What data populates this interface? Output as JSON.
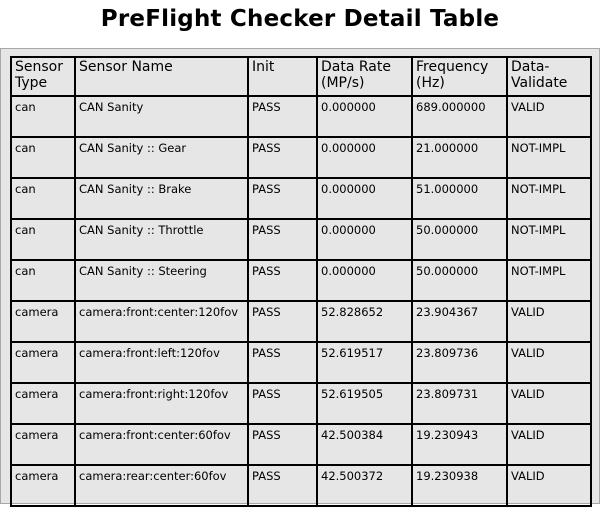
{
  "page": {
    "title": "PreFlight Checker Detail Table"
  },
  "colors": {
    "pass": "#33c933",
    "valid": "#33c933",
    "not_impl": "#f07a2a"
  },
  "table": {
    "headers": [
      "Sensor Type",
      "Sensor Name",
      "Init",
      "Data Rate (MP/s)",
      "Frequency (Hz)",
      "Data-Validate"
    ],
    "rows": [
      {
        "type": "can",
        "name": "CAN Sanity",
        "init": "PASS",
        "data_rate": "0.000000",
        "frequency": "689.000000",
        "validate": "VALID"
      },
      {
        "type": "can",
        "name": "CAN Sanity :: Gear",
        "init": "PASS",
        "data_rate": "0.000000",
        "frequency": "21.000000",
        "validate": "NOT-IMPL"
      },
      {
        "type": "can",
        "name": "CAN Sanity :: Brake",
        "init": "PASS",
        "data_rate": "0.000000",
        "frequency": "51.000000",
        "validate": "NOT-IMPL"
      },
      {
        "type": "can",
        "name": "CAN Sanity :: Throttle",
        "init": "PASS",
        "data_rate": "0.000000",
        "frequency": "50.000000",
        "validate": "NOT-IMPL"
      },
      {
        "type": "can",
        "name": "CAN Sanity :: Steering",
        "init": "PASS",
        "data_rate": "0.000000",
        "frequency": "50.000000",
        "validate": "NOT-IMPL"
      },
      {
        "type": "camera",
        "name": "camera:front:center:120fov",
        "init": "PASS",
        "data_rate": "52.828652",
        "frequency": "23.904367",
        "validate": "VALID"
      },
      {
        "type": "camera",
        "name": "camera:front:left:120fov",
        "init": "PASS",
        "data_rate": "52.619517",
        "frequency": "23.809736",
        "validate": "VALID"
      },
      {
        "type": "camera",
        "name": "camera:front:right:120fov",
        "init": "PASS",
        "data_rate": "52.619505",
        "frequency": "23.809731",
        "validate": "VALID"
      },
      {
        "type": "camera",
        "name": "camera:front:center:60fov",
        "init": "PASS",
        "data_rate": "42.500384",
        "frequency": "19.230943",
        "validate": "VALID"
      },
      {
        "type": "camera",
        "name": "camera:rear:center:60fov",
        "init": "PASS",
        "data_rate": "42.500372",
        "frequency": "19.230938",
        "validate": "VALID"
      }
    ]
  }
}
